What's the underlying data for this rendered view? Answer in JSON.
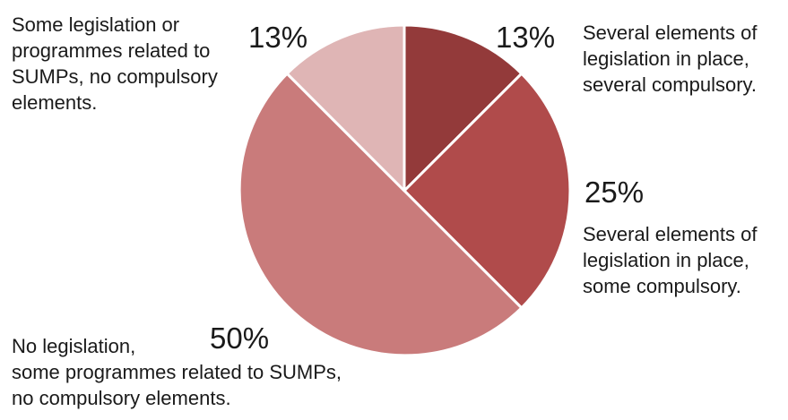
{
  "chart_data": {
    "type": "pie",
    "start_angle_deg": 0,
    "direction": "clockwise",
    "slice_border_color": "#ffffff",
    "slices": [
      {
        "value": 12.5,
        "value_label": "13%",
        "color": "#933a3a",
        "label_lines": [
          "Several elements of",
          "legislation in place,",
          "several compulsory."
        ]
      },
      {
        "value": 25,
        "value_label": "25%",
        "color": "#b04b4b",
        "label_lines": [
          "Several elements of",
          "legislation in place,",
          "some compulsory."
        ]
      },
      {
        "value": 50,
        "value_label": "50%",
        "color": "#c97b7b",
        "label_lines": [
          "No legislation,",
          "some programmes related to SUMPs,",
          "no compulsory elements."
        ]
      },
      {
        "value": 12.5,
        "value_label": "13%",
        "color": "#dfb5b5",
        "label_lines": [
          "Some legislation or",
          "programmes related to",
          "SUMPs, no compulsory",
          "elements."
        ]
      }
    ]
  }
}
